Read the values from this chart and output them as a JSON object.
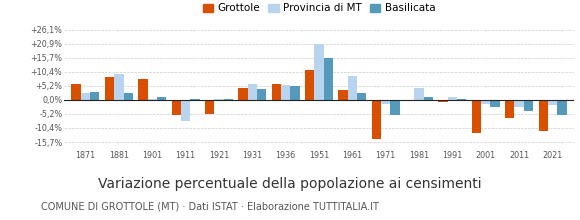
{
  "years": [
    1871,
    1881,
    1901,
    1911,
    1921,
    1931,
    1936,
    1951,
    1961,
    1971,
    1981,
    1991,
    2001,
    2011,
    2021
  ],
  "grottole": [
    5.8,
    8.5,
    7.8,
    -5.5,
    -5.3,
    4.5,
    5.8,
    11.2,
    3.8,
    -14.5,
    -0.3,
    -0.8,
    -12.3,
    -6.7,
    -11.5
  ],
  "provincia_mt": [
    2.5,
    9.5,
    0.5,
    -8.0,
    0.5,
    6.0,
    5.5,
    20.9,
    9.0,
    -1.5,
    4.5,
    1.0,
    -1.5,
    -2.5,
    -2.0
  ],
  "basilicata": [
    3.0,
    2.5,
    1.0,
    0.5,
    0.5,
    4.0,
    5.2,
    15.7,
    2.5,
    -5.5,
    1.0,
    0.5,
    -2.5,
    -4.0,
    -5.5
  ],
  "grottole_color": "#d94f00",
  "provincia_color": "#b8d4ee",
  "basilicata_color": "#5599bb",
  "background_color": "#ffffff",
  "grid_color": "#cccccc",
  "zero_line_color": "#222222",
  "yticks": [
    -15.7,
    -10.4,
    -5.2,
    0.0,
    5.2,
    10.4,
    15.7,
    20.9,
    26.1
  ],
  "ytick_labels": [
    "-15,7%",
    "-10,4%",
    "-5,2%",
    "0,0%",
    "+5,2%",
    "+10,4%",
    "+15,7%",
    "+20,9%",
    "+26,1%"
  ],
  "subtitle_text": "Variazione percentuale della popolazione ai censimenti",
  "footnote": "COMUNE DI GROTTOLE (MT) · Dati ISTAT · Elaborazione TUTTITALIA.IT",
  "legend_labels": [
    "Grottole",
    "Provincia di MT",
    "Basilicata"
  ],
  "bar_width": 0.28,
  "ylim": [
    -18.5,
    29
  ],
  "subtitle_fontsize": 10,
  "footnote_fontsize": 7,
  "tick_fontsize": 5.8,
  "legend_fontsize": 7.5
}
